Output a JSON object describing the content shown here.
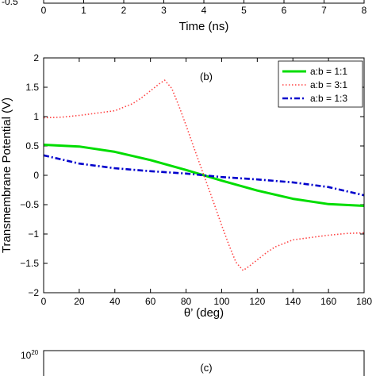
{
  "top_panel": {
    "xlabel": "Time (ns)",
    "x_ticks": [
      "0",
      "1",
      "2",
      "3",
      "4",
      "5",
      "6",
      "7",
      "8"
    ],
    "partial_y_tick": "-0.5"
  },
  "chart_data": [
    {
      "type": "line",
      "panel": "(b)",
      "xlabel": "θ’ (deg)",
      "ylabel": "Transmembrane Potential (V)",
      "xlim": [
        0,
        180
      ],
      "ylim": [
        -2,
        2
      ],
      "x_ticks": [
        0,
        20,
        40,
        60,
        80,
        100,
        120,
        140,
        160,
        180
      ],
      "y_ticks": [
        -2,
        -1.5,
        -1,
        -0.5,
        0,
        0.5,
        1,
        1.5,
        2
      ],
      "legend_position": "top-right",
      "series": [
        {
          "name": "a:b = 1:1",
          "color": "#00dd00",
          "style": "solid",
          "x": [
            0,
            20,
            40,
            60,
            80,
            90,
            100,
            120,
            140,
            160,
            180
          ],
          "y": [
            0.52,
            0.49,
            0.4,
            0.26,
            0.09,
            0.0,
            -0.09,
            -0.26,
            -0.4,
            -0.49,
            -0.52
          ]
        },
        {
          "name": "a:b = 3:1",
          "color": "#ff4444",
          "style": "dotted",
          "x": [
            0,
            10,
            20,
            30,
            40,
            50,
            55,
            60,
            65,
            68,
            72,
            76,
            80,
            85,
            90,
            95,
            100,
            104,
            108,
            112,
            115,
            120,
            125,
            130,
            140,
            150,
            160,
            170,
            180
          ],
          "y": [
            0.98,
            0.99,
            1.02,
            1.06,
            1.1,
            1.22,
            1.32,
            1.44,
            1.56,
            1.62,
            1.48,
            1.18,
            0.85,
            0.42,
            0.0,
            -0.42,
            -0.85,
            -1.18,
            -1.48,
            -1.62,
            -1.56,
            -1.44,
            -1.32,
            -1.22,
            -1.1,
            -1.06,
            -1.02,
            -0.99,
            -0.98
          ]
        },
        {
          "name": "a:b = 1:3",
          "color": "#0000cc",
          "style": "dashdot",
          "x": [
            0,
            20,
            40,
            60,
            80,
            90,
            100,
            120,
            140,
            160,
            180
          ],
          "y": [
            0.34,
            0.2,
            0.12,
            0.07,
            0.03,
            0.0,
            -0.03,
            -0.07,
            -0.12,
            -0.2,
            -0.34
          ]
        }
      ]
    },
    {
      "type": "line",
      "panel": "(c)",
      "y_ticks": [
        "10^20"
      ],
      "series": []
    }
  ]
}
